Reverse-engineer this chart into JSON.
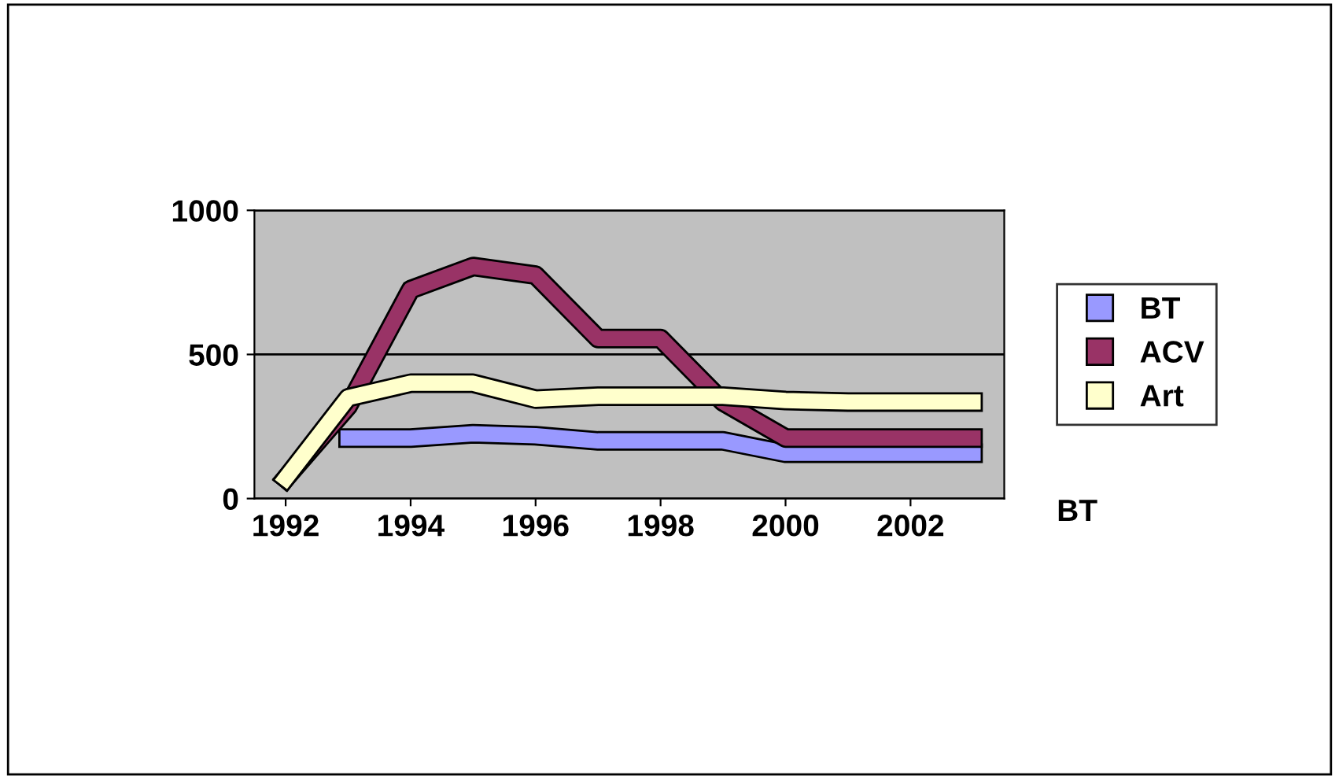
{
  "chart_data": {
    "type": "line",
    "x": [
      1992,
      1993,
      1994,
      1995,
      1996,
      1997,
      1998,
      1999,
      2000,
      2001,
      2002,
      2003
    ],
    "series": [
      {
        "name": "BT",
        "color": "#9999ff",
        "values": [
          null,
          210,
          210,
          225,
          218,
          200,
          200,
          200,
          157,
          157,
          157,
          157
        ]
      },
      {
        "name": "ACV",
        "color": "#993366",
        "values": [
          70,
          320,
          725,
          805,
          775,
          555,
          555,
          335,
          210,
          210,
          210,
          210
        ]
      },
      {
        "name": "Art",
        "color": "#ffffcc",
        "values": [
          70,
          350,
          400,
          400,
          345,
          355,
          355,
          355,
          340,
          335,
          335,
          335
        ]
      }
    ],
    "xlim": [
      1991.5,
      2003.5
    ],
    "xticks": [
      1992,
      1994,
      1996,
      1998,
      2000,
      2002
    ],
    "ylim": [
      0,
      1000
    ],
    "yticks": [
      0,
      500,
      1000
    ],
    "grid": "y",
    "legend": "right",
    "marker": "none",
    "line_style": "solid",
    "annotations": [
      "BT"
    ]
  }
}
